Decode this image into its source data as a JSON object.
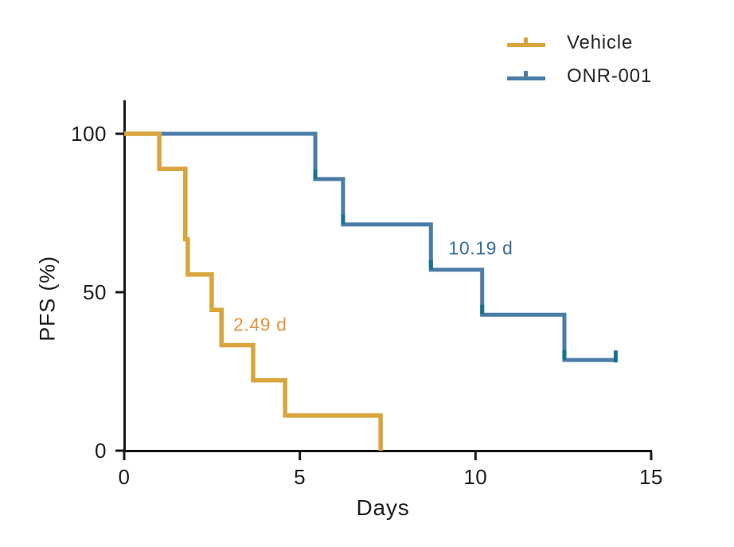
{
  "figure": {
    "kind": "Kaplan-Meier survival plot"
  },
  "legend": {
    "items": [
      {
        "label": "Vehicle",
        "color": "#D9A53C"
      },
      {
        "label": "ONR-001",
        "color": "#4C7CA8"
      }
    ]
  },
  "axes": {
    "x": {
      "label": "Days",
      "range": [
        0,
        15
      ],
      "ticks": [
        {
          "label": "0",
          "value": 0
        },
        {
          "label": "5",
          "value": 5
        },
        {
          "label": "10",
          "value": 10
        },
        {
          "label": "15",
          "value": 15
        }
      ]
    },
    "y": {
      "label": "PFS (%)",
      "range": [
        0,
        100
      ],
      "ticks": [
        {
          "label": "100",
          "value": 100
        },
        {
          "label": "50",
          "value": 50
        },
        {
          "label": "0",
          "value": 0
        }
      ]
    }
  },
  "annotations": [
    {
      "text": "2.49 d",
      "color": "#E2953D",
      "t": 3.87,
      "s": 39.8
    },
    {
      "text": "10.19 d",
      "color": "#3E6D9C",
      "t": 10.15,
      "s": 63.9
    }
  ],
  "colors": {
    "axis": "#1A1A1A",
    "background": "#FFFFFF",
    "event_marker": "#17748F"
  },
  "chart_data": {
    "type": "line",
    "subtype": "kaplan-meier-step",
    "title": "",
    "xlabel": "Days",
    "ylabel": "PFS (%)",
    "xlim": [
      0,
      15
    ],
    "ylim": [
      0,
      100
    ],
    "grid": false,
    "legend_position": "top-right",
    "series": [
      {
        "name": "Vehicle",
        "color": "#D9A53C",
        "median_label": "2.49 d",
        "steps": [
          {
            "t": 0,
            "s": 100
          },
          {
            "t": 1.0,
            "s": 88.9
          },
          {
            "t": 1.74,
            "s": 66.7
          },
          {
            "t": 1.81,
            "s": 55.6
          },
          {
            "t": 2.49,
            "s": 44.4
          },
          {
            "t": 2.77,
            "s": 33.3
          },
          {
            "t": 3.67,
            "s": 22.2
          },
          {
            "t": 4.58,
            "s": 11.1
          },
          {
            "t": 7.3,
            "s": 0
          }
        ]
      },
      {
        "name": "ONR-001",
        "color": "#4C7CA8",
        "median_label": "10.19 d",
        "steps": [
          {
            "t": 0,
            "s": 100
          },
          {
            "t": 5.44,
            "s": 85.7
          },
          {
            "t": 6.23,
            "s": 71.4
          },
          {
            "t": 8.73,
            "s": 57.1
          },
          {
            "t": 10.19,
            "s": 42.9
          },
          {
            "t": 12.53,
            "s": 28.6
          }
        ],
        "event_caps": [
          {
            "t": 5.44,
            "s": 85.7
          },
          {
            "t": 6.23,
            "s": 71.4
          },
          {
            "t": 8.73,
            "s": 57.1
          },
          {
            "t": 10.19,
            "s": 42.9
          },
          {
            "t": 12.53,
            "s": 28.6
          }
        ],
        "censor_ticks": [
          {
            "t": 13.99,
            "s": 28.6
          }
        ]
      }
    ]
  }
}
